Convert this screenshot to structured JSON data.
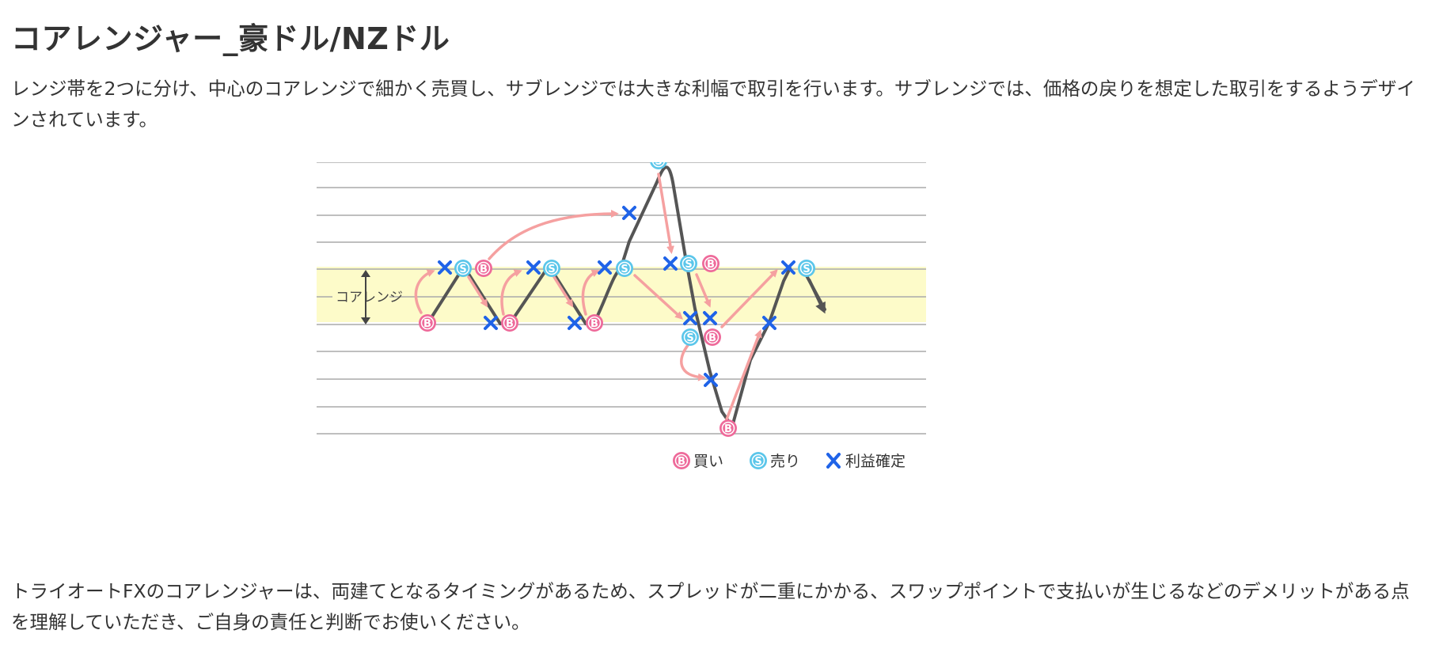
{
  "title": "コアレンジャー_豪ドル/NZドル",
  "intro_text": "レンジ帯を2つに分け、中心のコアレンジで細かく売買し、サブレンジでは大きな利幅で取引を行います。サブレンジでは、価格の戻りを想定した取引をするようデザインされています。",
  "diagram": {
    "core_range_label": "コアレンジ",
    "marker_buy_letter": "B",
    "marker_sell_letter": "S",
    "legend": {
      "buy_label": "買い",
      "sell_label": "売り",
      "profit_label": "利益確定"
    },
    "colors": {
      "core_band": "#fdfbc9",
      "price_line": "#555555",
      "buy": "#ee6a9a",
      "sell": "#5bc6ea",
      "profit_mark": "#1f63e8",
      "arrow": "#f5a0a0",
      "grid": "#aaaaaa"
    }
  },
  "footer_text": "トライオートFXのコアレンジャーは、両建てとなるタイミングがあるため、スプレッドが二重にかかる、スワップポイントで支払いが生じるなどのデメリットがある点を理解していただき、ご自身の責任と判断でお使いください。"
}
